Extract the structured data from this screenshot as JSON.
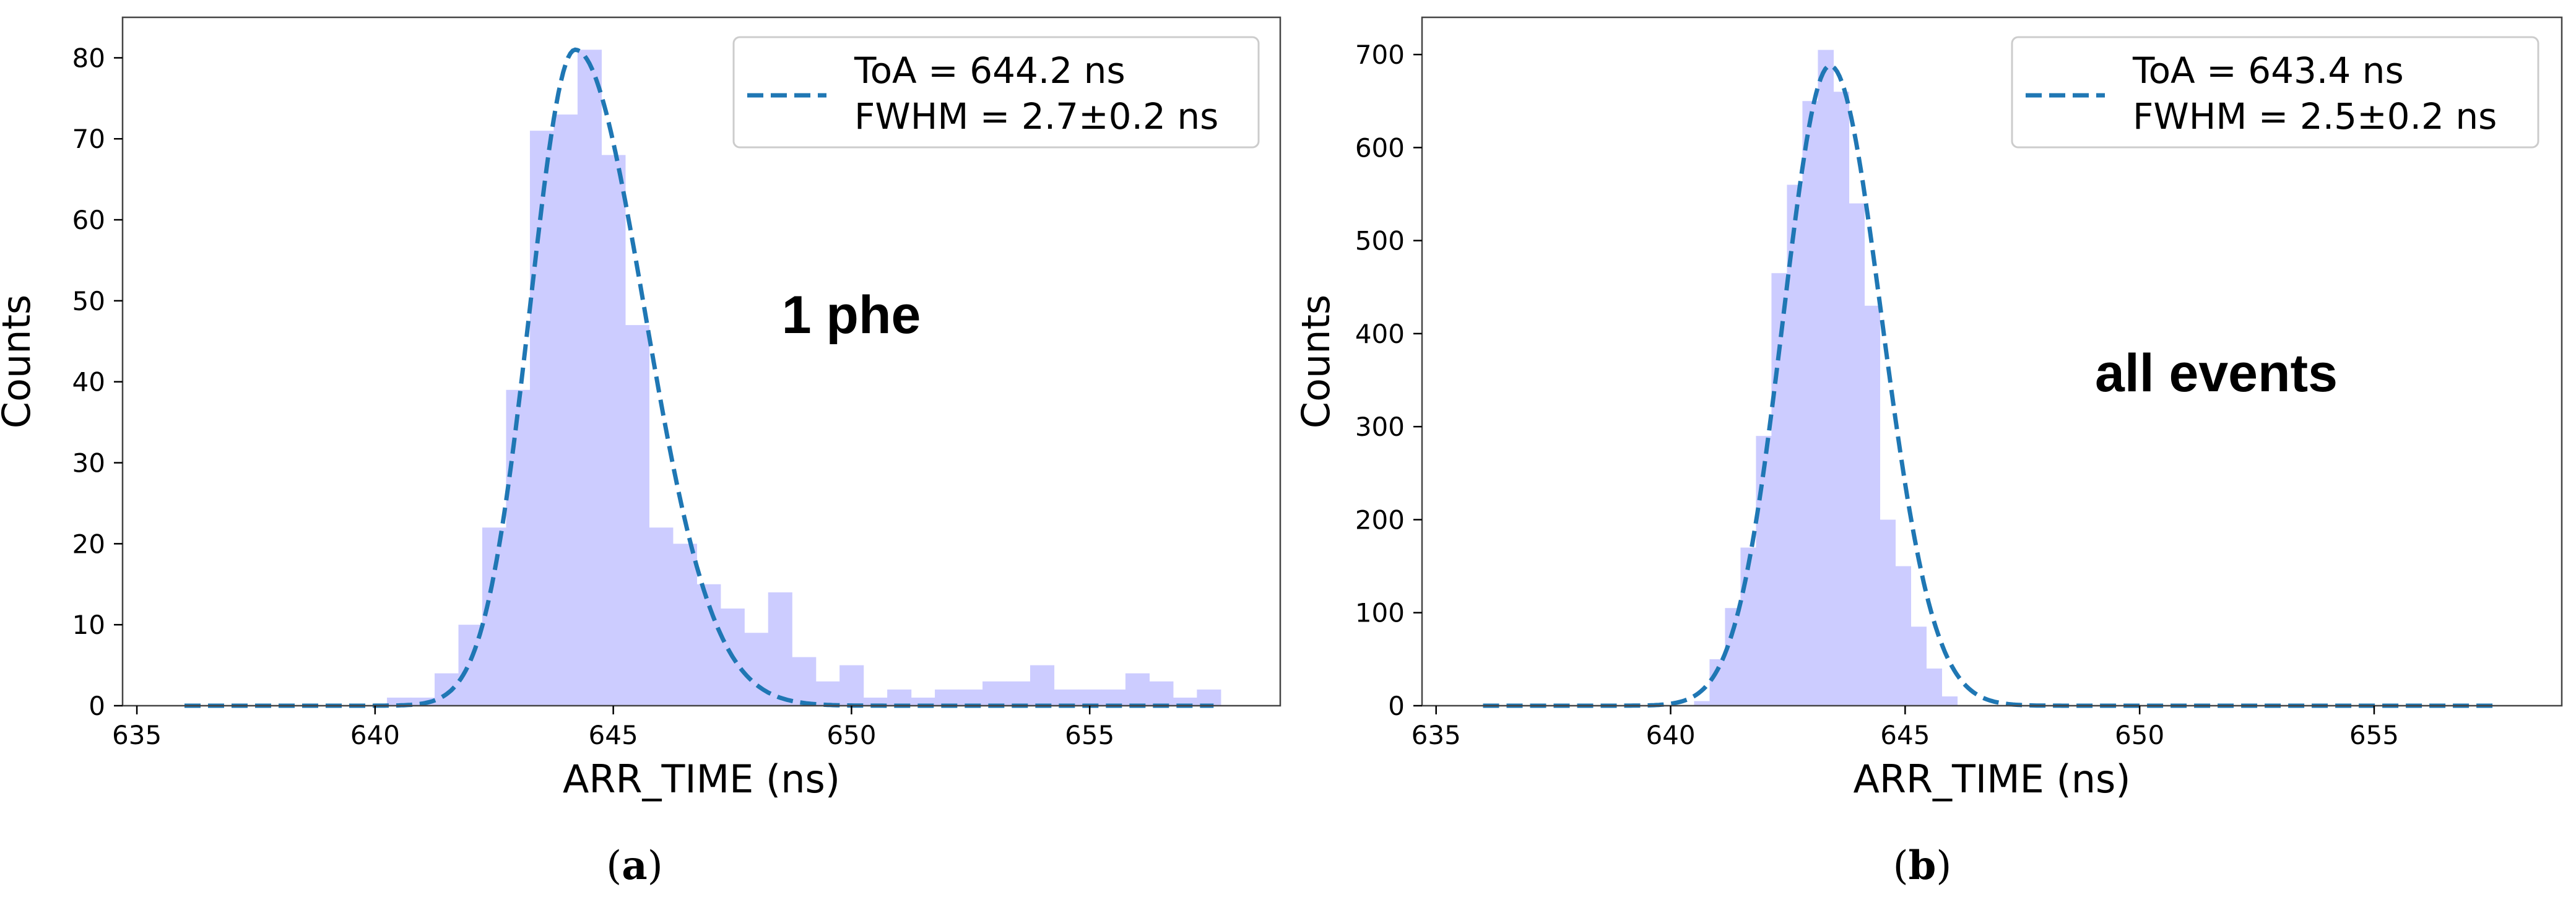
{
  "chart_data": [
    {
      "type": "bar",
      "caption": "(a)",
      "caption_bold": "a",
      "xlabel": "ARR_TIME (ns)",
      "ylabel": "Counts",
      "annotation": "1 phe",
      "xlim": [
        634.7,
        659.0
      ],
      "ylim": [
        0,
        85
      ],
      "xticks": [
        635,
        640,
        645,
        650,
        655
      ],
      "yticks": [
        0,
        10,
        20,
        30,
        40,
        50,
        60,
        70,
        80
      ],
      "legend": {
        "placement": "top-right",
        "entries": [
          "ToA = 644.2 ns",
          "FWHM = 2.7±0.2 ns"
        ]
      },
      "colors": {
        "hist": "#ccccff",
        "fit": "#1f77b4"
      },
      "fit": {
        "peak_x": 644.2,
        "peak_y": 81,
        "sigma_left": 0.95,
        "sigma_right": 1.45
      },
      "bin_width": 0.5,
      "bins": [
        {
          "x0": 640.25,
          "count": 1
        },
        {
          "x0": 640.75,
          "count": 1
        },
        {
          "x0": 641.25,
          "count": 4
        },
        {
          "x0": 641.75,
          "count": 10
        },
        {
          "x0": 642.25,
          "count": 22
        },
        {
          "x0": 642.75,
          "count": 39
        },
        {
          "x0": 643.25,
          "count": 71
        },
        {
          "x0": 643.75,
          "count": 73
        },
        {
          "x0": 644.25,
          "count": 81
        },
        {
          "x0": 644.75,
          "count": 68
        },
        {
          "x0": 645.25,
          "count": 47
        },
        {
          "x0": 645.75,
          "count": 22
        },
        {
          "x0": 646.25,
          "count": 20
        },
        {
          "x0": 646.75,
          "count": 15
        },
        {
          "x0": 647.25,
          "count": 12
        },
        {
          "x0": 647.75,
          "count": 9
        },
        {
          "x0": 648.25,
          "count": 14
        },
        {
          "x0": 648.75,
          "count": 6
        },
        {
          "x0": 649.25,
          "count": 3
        },
        {
          "x0": 649.75,
          "count": 5
        },
        {
          "x0": 650.25,
          "count": 1
        },
        {
          "x0": 650.75,
          "count": 2
        },
        {
          "x0": 651.25,
          "count": 1
        },
        {
          "x0": 651.75,
          "count": 2
        },
        {
          "x0": 652.25,
          "count": 2
        },
        {
          "x0": 652.75,
          "count": 3
        },
        {
          "x0": 653.25,
          "count": 3
        },
        {
          "x0": 653.75,
          "count": 5
        },
        {
          "x0": 654.25,
          "count": 2
        },
        {
          "x0": 654.75,
          "count": 2
        },
        {
          "x0": 655.25,
          "count": 2
        },
        {
          "x0": 655.75,
          "count": 4
        },
        {
          "x0": 656.25,
          "count": 3
        },
        {
          "x0": 656.75,
          "count": 1
        },
        {
          "x0": 657.25,
          "count": 2
        }
      ]
    },
    {
      "type": "bar",
      "caption": "(b)",
      "caption_bold": "b",
      "xlabel": "ARR_TIME (ns)",
      "ylabel": "Counts",
      "annotation": "all events",
      "xlim": [
        634.7,
        659.0
      ],
      "ylim": [
        0,
        740
      ],
      "xticks": [
        635,
        640,
        645,
        650,
        655
      ],
      "yticks": [
        0,
        100,
        200,
        300,
        400,
        500,
        600,
        700
      ],
      "legend": {
        "placement": "top-right",
        "entries": [
          "ToA = 643.4 ns",
          "FWHM = 2.5±0.2 ns"
        ]
      },
      "colors": {
        "hist": "#ccccff",
        "fit": "#1f77b4"
      },
      "fit": {
        "peak_x": 643.4,
        "peak_y": 688,
        "sigma_left": 1.0,
        "sigma_right": 1.1
      },
      "bin_width": 0.33,
      "bins": [
        {
          "x0": 640.5,
          "count": 5
        },
        {
          "x0": 640.83,
          "count": 50
        },
        {
          "x0": 641.16,
          "count": 105
        },
        {
          "x0": 641.49,
          "count": 170
        },
        {
          "x0": 641.82,
          "count": 290
        },
        {
          "x0": 642.15,
          "count": 465
        },
        {
          "x0": 642.48,
          "count": 560
        },
        {
          "x0": 642.81,
          "count": 650
        },
        {
          "x0": 643.14,
          "count": 705
        },
        {
          "x0": 643.47,
          "count": 660
        },
        {
          "x0": 643.8,
          "count": 540
        },
        {
          "x0": 644.13,
          "count": 430
        },
        {
          "x0": 644.46,
          "count": 200
        },
        {
          "x0": 644.79,
          "count": 150
        },
        {
          "x0": 645.12,
          "count": 85
        },
        {
          "x0": 645.45,
          "count": 40
        },
        {
          "x0": 645.78,
          "count": 10
        }
      ]
    }
  ]
}
